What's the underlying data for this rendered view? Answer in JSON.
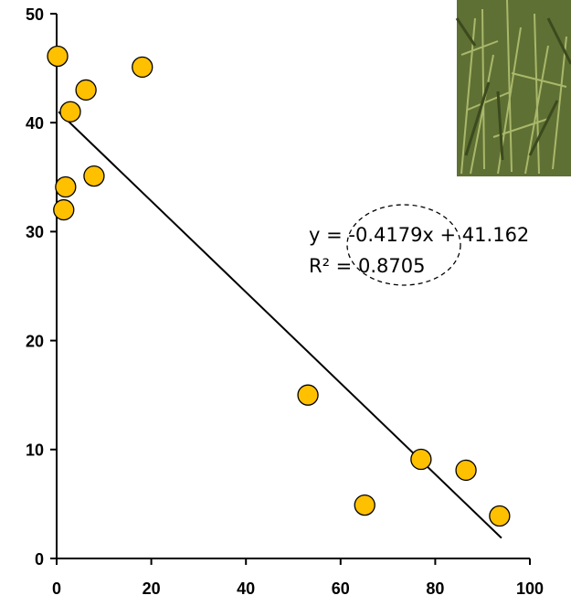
{
  "chart_data": {
    "type": "scatter",
    "x": [
      0.2,
      18.1,
      6.2,
      2.9,
      7.9,
      1.9,
      1.5,
      53.1,
      77.0,
      86.5,
      65.1,
      93.6
    ],
    "values": [
      46.1,
      45.1,
      43.0,
      41.0,
      35.1,
      34.1,
      32.0,
      15.0,
      9.1,
      8.1,
      4.9,
      3.9
    ],
    "color": "#ffc000",
    "xlim": [
      0,
      100
    ],
    "xticks": [
      0,
      20,
      40,
      60,
      80,
      100
    ],
    "ylim": [
      0,
      50
    ],
    "yticks": [
      0,
      10,
      20,
      30,
      40,
      50
    ],
    "trendline": {
      "slope": -0.4179,
      "intercept": 41.162,
      "xrange": [
        0.4,
        94
      ]
    },
    "equation": "y = -0.4179x + 41.162",
    "r_squared": "R² = 0.8705"
  }
}
